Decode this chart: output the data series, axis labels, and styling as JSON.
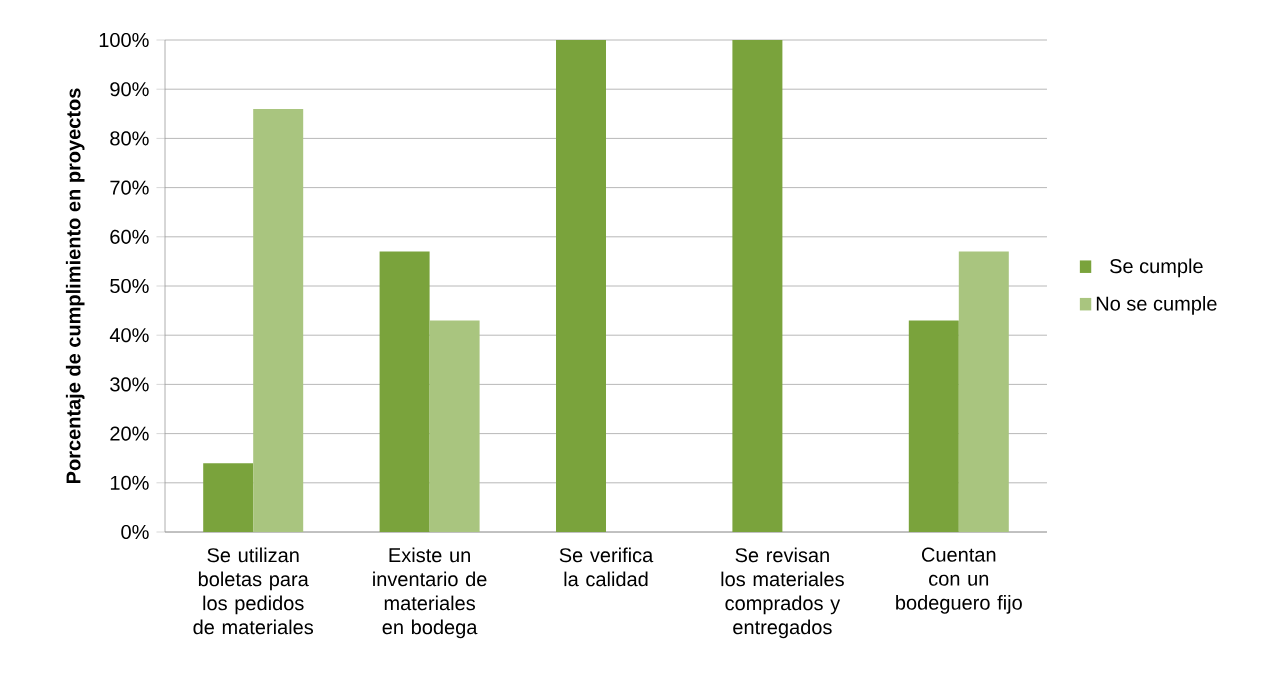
{
  "chart_data": {
    "type": "bar",
    "ylabel": "Porcentaje de cumplimiento en proyectos",
    "categories": [
      "Se utilizan boletas para los pedidos de materiales",
      "Existe un inventario de materiales en bodega",
      "Se verifica la calidad",
      "Se revisan los materiales comprados y entregados",
      "Cuentan con un bodeguero fijo"
    ],
    "series": [
      {
        "name": "Se cumple",
        "color": "#7aa33c",
        "values": [
          14,
          57,
          100,
          100,
          43
        ]
      },
      {
        "name": "No se cumple",
        "color": "#a9c57f",
        "values": [
          86,
          43,
          0,
          0,
          57
        ]
      }
    ],
    "ylim": [
      0,
      100
    ],
    "yticks": [
      {
        "value": 0,
        "label": "0%"
      },
      {
        "value": 10,
        "label": "10%"
      },
      {
        "value": 20,
        "label": "20%"
      },
      {
        "value": 30,
        "label": "30%"
      },
      {
        "value": 40,
        "label": "40%"
      },
      {
        "value": 50,
        "label": "50%"
      },
      {
        "value": 60,
        "label": "60%"
      },
      {
        "value": 70,
        "label": "70%"
      },
      {
        "value": 80,
        "label": "80%"
      },
      {
        "value": 90,
        "label": "90%"
      },
      {
        "value": 100,
        "label": "100%"
      }
    ],
    "grid": "y",
    "legend": "right"
  }
}
